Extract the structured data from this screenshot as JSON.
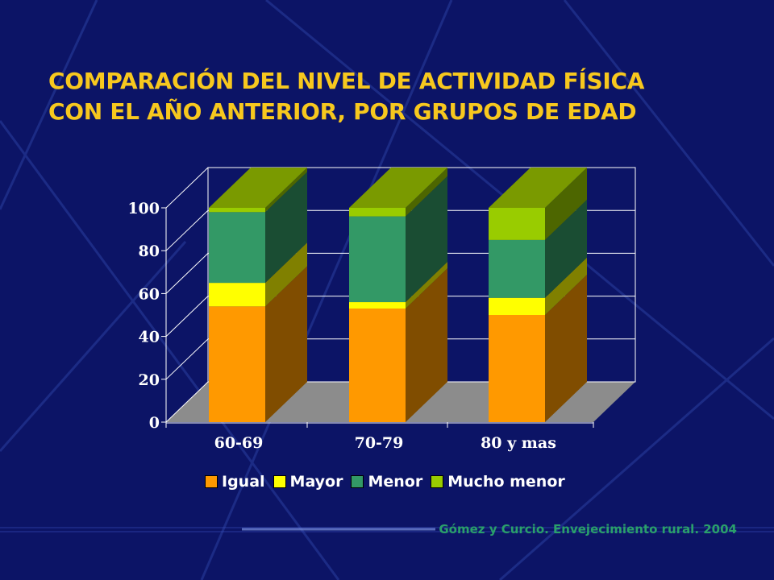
{
  "title_lines": [
    "COMPARACIÓN DEL NIVEL DE ACTIVIDAD FÍSICA",
    "CON EL AÑO ANTERIOR, POR GRUPOS DE EDAD"
  ],
  "source": "Gómez y Curcio. Envejecimiento rural.  2004",
  "colors": {
    "background": "#0c1466",
    "title": "#f7c81e",
    "source": "#2aa06a",
    "floor": "#8c8c8c"
  },
  "chart_data": {
    "type": "bar",
    "stacked": true,
    "three_d": true,
    "categories": [
      "60-69",
      "70-79",
      "80 y mas"
    ],
    "series": [
      {
        "name": "Igual",
        "values": [
          54,
          53,
          50
        ],
        "color": "#ff9900",
        "side_color": "#804d00"
      },
      {
        "name": "Mayor",
        "values": [
          11,
          3,
          8
        ],
        "color": "#ffff00",
        "side_color": "#808000"
      },
      {
        "name": "Menor",
        "values": [
          33,
          40,
          27
        ],
        "color": "#339966",
        "side_color": "#1a4d33"
      },
      {
        "name": "Mucho menor",
        "values": [
          2,
          4,
          15
        ],
        "color": "#99cc00",
        "side_color": "#4d6600"
      }
    ],
    "ylim": [
      0,
      100
    ],
    "yticks": [
      "0",
      "20",
      "40",
      "60",
      "80",
      "100"
    ],
    "grid": true,
    "legend_position": "bottom"
  }
}
